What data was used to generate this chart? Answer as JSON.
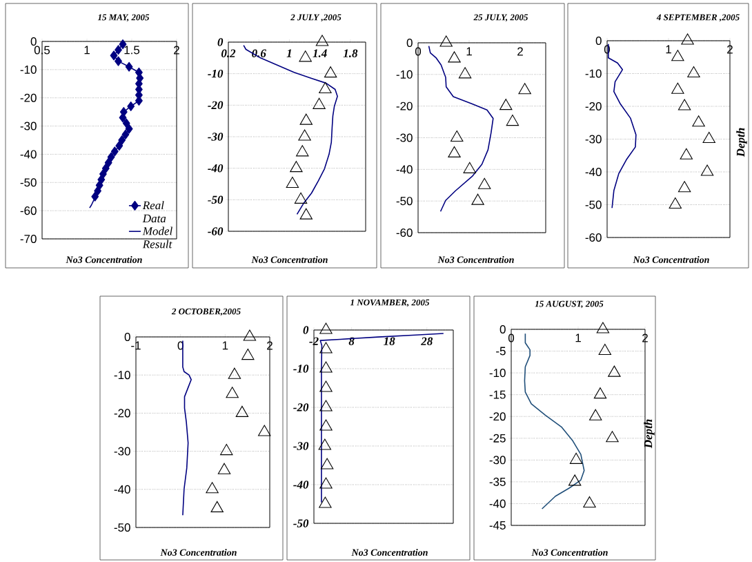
{
  "chart_data": [
    {
      "type": "line",
      "title": "15 MAY, 2005",
      "xlabel": "No3 Concentration",
      "xlim": [
        0.5,
        2
      ],
      "xticks": [
        0.5,
        1,
        1.5,
        2
      ],
      "ylim": [
        -70,
        0
      ],
      "yticks": [
        -70,
        -60,
        -50,
        -40,
        -30,
        -20,
        -10,
        0
      ],
      "grid": "y",
      "legend": "bottom right",
      "series": [
        {
          "name": "Real Data",
          "type": "line",
          "marker": "diamond",
          "color": "#000080",
          "x": [
            1.4,
            1.35,
            1.3,
            1.35,
            1.47,
            1.58,
            1.59,
            1.58,
            1.58,
            1.58,
            1.58,
            1.49,
            1.41,
            1.4,
            1.44,
            1.47,
            1.43,
            1.39,
            1.36,
            1.31,
            1.27,
            1.24,
            1.21,
            1.18,
            1.16,
            1.14,
            1.12,
            1.09
          ],
          "values": [
            -1,
            -3,
            -5,
            -7,
            -9,
            -11,
            -13,
            -15,
            -17,
            -19,
            -21,
            -23,
            -25,
            -27,
            -29,
            -31,
            -33,
            -35,
            -37,
            -39,
            -41,
            -43,
            -45,
            -47,
            -49,
            -51,
            -53,
            -55
          ]
        },
        {
          "name": "Model Result",
          "type": "line",
          "marker": "none",
          "color": "#000080",
          "x": [
            1.12,
            1.08,
            1.05,
            1.03
          ],
          "values": [
            -53,
            -56,
            -58,
            -59
          ]
        }
      ]
    },
    {
      "type": "line",
      "title": "2 JULY ,2005",
      "xlabel": "No3 Concentration",
      "xlim": [
        0.2,
        2.0
      ],
      "xticks": [
        0.2,
        0.6,
        1,
        1.4,
        1.8
      ],
      "ylim": [
        -60,
        0
      ],
      "yticks": [
        -60,
        -50,
        -40,
        -30,
        -20,
        -10,
        0
      ],
      "grid": "y",
      "series": [
        {
          "type": "scatter",
          "marker": "triangle",
          "color": "#000000",
          "x": [
            1.43,
            1.21,
            1.54,
            1.47,
            1.39,
            1.22,
            1.2,
            1.17,
            1.09,
            1.04,
            1.15,
            1.22
          ],
          "values": [
            0,
            -5,
            -10,
            -15,
            -20,
            -25,
            -30,
            -35,
            -40,
            -45,
            -50,
            -55
          ]
        },
        {
          "type": "line",
          "marker": "none",
          "color": "#000080",
          "x": [
            0.4,
            0.43,
            0.62,
            0.84,
            1.06,
            1.29,
            1.48,
            1.6,
            1.63,
            1.59,
            1.57,
            1.56,
            1.55,
            1.52,
            1.46,
            1.38,
            1.29,
            1.19,
            1.1
          ],
          "values": [
            -1,
            -2.3,
            -5,
            -7.3,
            -9.6,
            -11.5,
            -13,
            -15,
            -17.2,
            -20.3,
            -23.4,
            -27.2,
            -31.8,
            -35.6,
            -40.2,
            -44,
            -47.9,
            -51,
            -54.6
          ]
        }
      ]
    },
    {
      "type": "line",
      "title": "25 JULY, 2005",
      "xlabel": "No3 Concentration",
      "xlim": [
        0,
        2.5
      ],
      "xticks": [
        0,
        1,
        2
      ],
      "ylim": [
        -60,
        0
      ],
      "yticks": [
        -60,
        -50,
        -40,
        -30,
        -20,
        -10,
        0
      ],
      "grid": "y",
      "series": [
        {
          "type": "scatter",
          "marker": "triangle",
          "color": "#000000",
          "x": [
            0.55,
            0.71,
            0.92,
            2.09,
            1.72,
            1.85,
            0.76,
            0.71,
            1.01,
            1.3,
            1.17
          ],
          "values": [
            0,
            -5,
            -10,
            -15,
            -20,
            -25,
            -30,
            -35,
            -40,
            -45,
            -50
          ]
        },
        {
          "type": "line",
          "marker": "none",
          "color": "#000080",
          "x": [
            0.21,
            0.24,
            0.35,
            0.45,
            0.54,
            0.55,
            0.69,
            1.06,
            1.35,
            1.47,
            1.43,
            1.37,
            1.25,
            1.06,
            0.73,
            0.54,
            0.44
          ],
          "values": [
            -1,
            -3.2,
            -4.7,
            -7,
            -10.9,
            -13.9,
            -17,
            -19.3,
            -21.2,
            -23.9,
            -28.4,
            -33.8,
            -38.4,
            -42.2,
            -46.8,
            -49.8,
            -53.3
          ]
        }
      ]
    },
    {
      "type": "line",
      "title": "4 SEPTEMBER ,2005",
      "xlabel": "No3 Concentration",
      "ylabel": "Depth",
      "xlim": [
        0,
        2
      ],
      "xticks": [
        0,
        1,
        2
      ],
      "ylim": [
        -60,
        0
      ],
      "yticks": [
        -60,
        -50,
        -40,
        -30,
        -20,
        -10,
        0
      ],
      "grid": "y",
      "series": [
        {
          "type": "scatter",
          "marker": "triangle",
          "color": "#000000",
          "x": [
            1.31,
            1.15,
            1.41,
            1.15,
            1.26,
            1.49,
            1.66,
            1.29,
            1.63,
            1.26,
            1.11
          ],
          "values": [
            0,
            -5,
            -10,
            -15,
            -20,
            -25,
            -30,
            -35,
            -40,
            -45,
            -50
          ]
        },
        {
          "type": "line",
          "marker": "none",
          "color": "#000080",
          "x": [
            0.02,
            0.02,
            0.17,
            0.25,
            0.13,
            0.11,
            0.21,
            0.38,
            0.47,
            0.46,
            0.32,
            0.19,
            0.11,
            0.08
          ],
          "values": [
            -1,
            -5.2,
            -6.8,
            -8.8,
            -12.5,
            -15.5,
            -19.1,
            -23.6,
            -28.7,
            -32.4,
            -36.1,
            -40.5,
            -45.7,
            -51
          ]
        }
      ]
    },
    {
      "type": "line",
      "title": "2 OCTOBER,2005",
      "xlabel": "No3 Concentration",
      "xlim": [
        -1,
        2
      ],
      "xticks": [
        -1,
        0,
        1,
        2
      ],
      "ylim": [
        -50,
        0
      ],
      "yticks": [
        -50,
        -40,
        -30,
        -20,
        -10,
        0
      ],
      "grid": "y",
      "series": [
        {
          "type": "scatter",
          "marker": "triangle",
          "color": "#000000",
          "x": [
            1.55,
            1.51,
            1.21,
            1.16,
            1.38,
            1.88,
            1.03,
            0.98,
            0.71,
            0.82
          ],
          "values": [
            0,
            -5,
            -10,
            -15,
            -20,
            -25,
            -30,
            -35,
            -40,
            -45
          ]
        },
        {
          "type": "line",
          "marker": "none",
          "color": "#000080",
          "x": [
            0.05,
            0.05,
            0.08,
            0.19,
            0.24,
            0.17,
            0.09,
            0.09,
            0.13,
            0.17,
            0.14,
            0.08,
            0.05
          ],
          "values": [
            -1,
            -7.9,
            -9.1,
            -10,
            -11.2,
            -13.3,
            -15.7,
            -18.7,
            -22.3,
            -27.8,
            -34.4,
            -39.9,
            -46.8
          ]
        }
      ]
    },
    {
      "type": "line",
      "title": "1 NOVAMBER, 2005",
      "xlabel": "No3 Concentration",
      "xlim": [
        -2,
        35
      ],
      "xticks": [
        -2,
        8,
        18,
        28
      ],
      "ylim": [
        -50,
        0
      ],
      "yticks": [
        -50,
        -40,
        -30,
        -20,
        -10,
        0
      ],
      "grid": "y",
      "series": [
        {
          "type": "scatter",
          "marker": "triangle",
          "color": "#000000",
          "x": [
            1.2,
            1.2,
            1.2,
            1.2,
            1.2,
            1.2,
            0.9,
            1.5,
            1.2,
            1.0
          ],
          "values": [
            0,
            -5,
            -10,
            -15,
            -20,
            -25,
            -30,
            -35,
            -40,
            -45
          ]
        },
        {
          "type": "line",
          "marker": "none",
          "color": "#000080",
          "x": [
            0,
            0,
            0.1,
            -0.3,
            5,
            15,
            25,
            32.4
          ],
          "values": [
            -44.6,
            -10,
            -4,
            -2.7,
            -2.4,
            -1.8,
            -1.3,
            -0.9
          ]
        }
      ]
    },
    {
      "type": "line",
      "title": "15 AUGUST, 2005",
      "xlabel": "No3 Concentration",
      "ylabel": "Depth",
      "xlim": [
        0,
        2
      ],
      "xticks": [
        0,
        1,
        2
      ],
      "ylim": [
        -45,
        0
      ],
      "yticks": [
        -45,
        -40,
        -35,
        -30,
        -25,
        -20,
        -15,
        -10,
        -5,
        0
      ],
      "grid": "y",
      "series": [
        {
          "type": "scatter",
          "marker": "triangle",
          "color": "#000000",
          "x": [
            1.37,
            1.4,
            1.54,
            1.33,
            1.26,
            1.51,
            0.97,
            0.95,
            1.17
          ],
          "values": [
            0,
            -5,
            -10,
            -15,
            -20,
            -25,
            -30,
            -35,
            -40
          ]
        },
        {
          "type": "line",
          "marker": "none",
          "color": "#1f4e79",
          "x": [
            0.21,
            0.21,
            0.28,
            0.28,
            0.21,
            0.2,
            0.21,
            0.3,
            0.51,
            0.75,
            0.92,
            1.04,
            1.09,
            1.04,
            0.87,
            0.66,
            0.46
          ],
          "values": [
            -1,
            -3.1,
            -4.7,
            -6,
            -8.6,
            -11.8,
            -14.4,
            -17.1,
            -19.7,
            -22.4,
            -25.6,
            -28.7,
            -32.4,
            -34.6,
            -36.4,
            -38.3,
            -41.2
          ]
        }
      ]
    }
  ]
}
